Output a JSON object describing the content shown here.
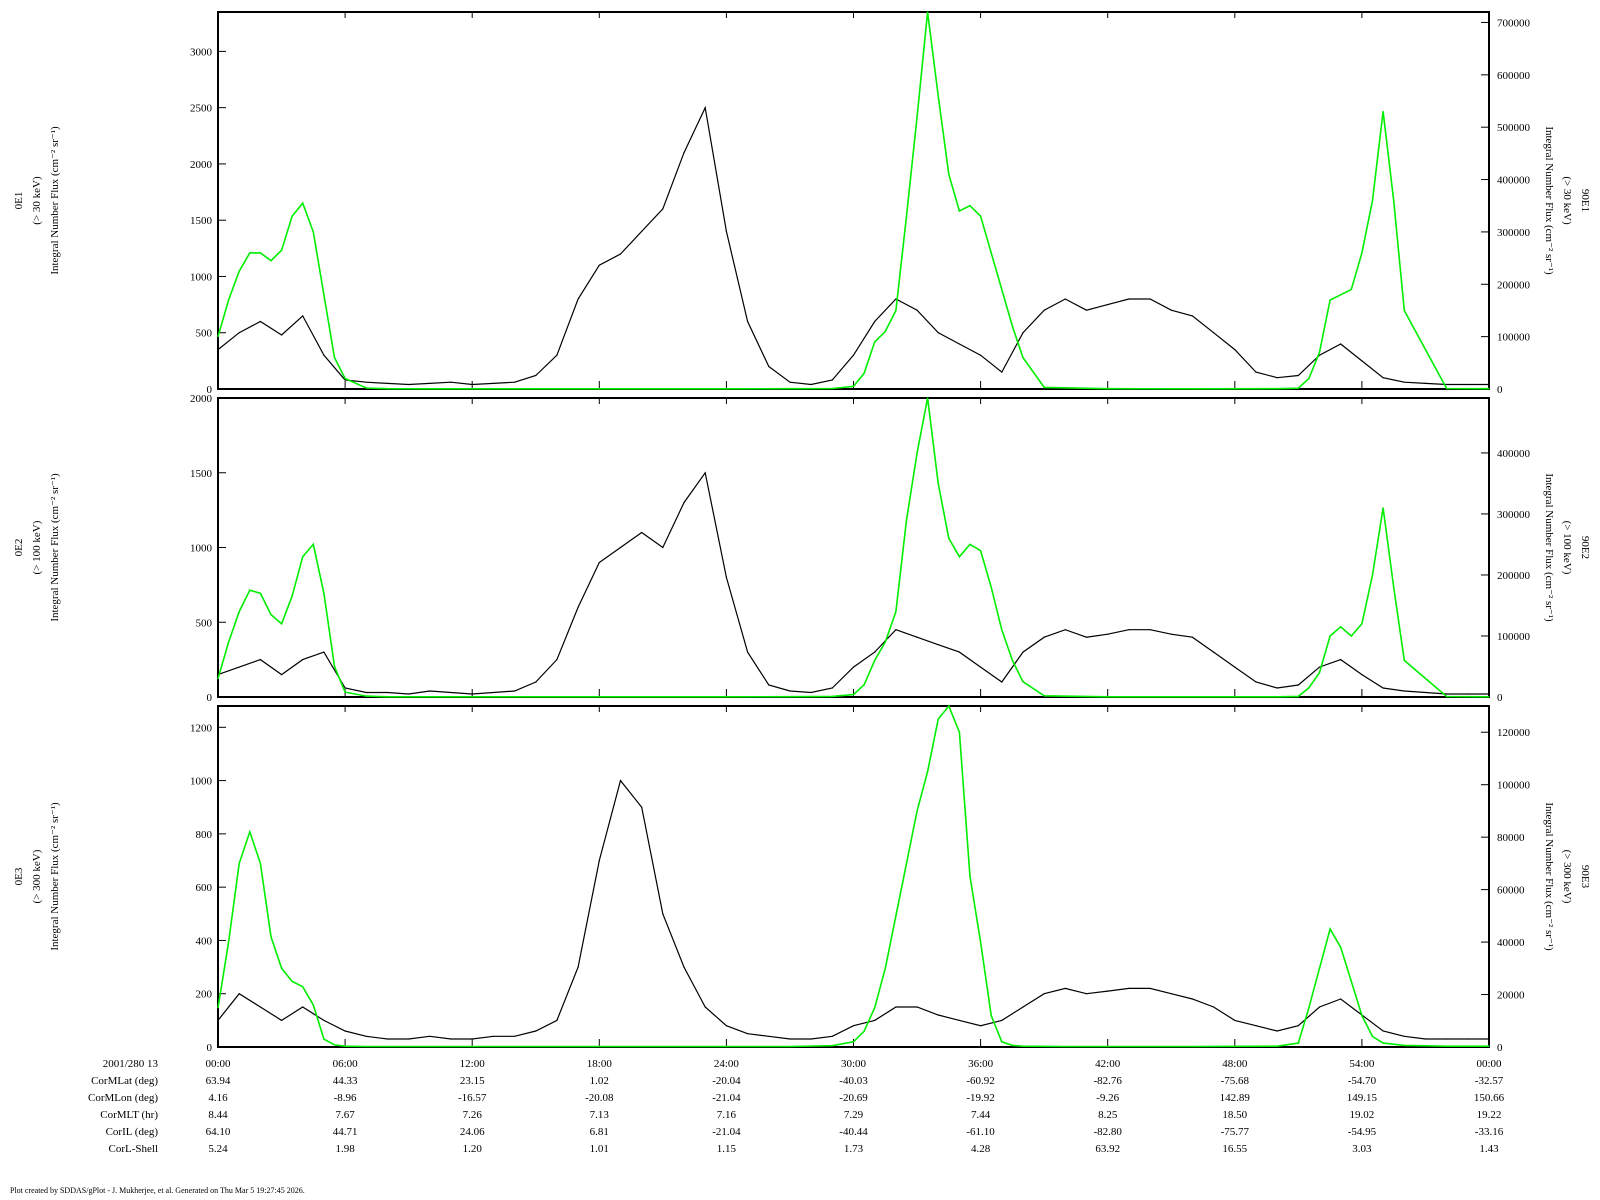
{
  "chart_data": {
    "type": "line",
    "x_axis": {
      "range_hours": [
        0,
        60
      ],
      "tick_labels": [
        "00:00",
        "06:00",
        "12:00",
        "18:00",
        "24:00",
        "30:00",
        "36:00",
        "42:00",
        "48:00",
        "54:00",
        "00:00"
      ],
      "origin_label": "2001/280 13"
    },
    "panels": [
      {
        "id": "E1",
        "left_axis": {
          "label_lines": [
            "0E1",
            "(> 30 keV)",
            "Integral Number Flux (cm⁻² sr⁻¹)"
          ],
          "range": [
            0,
            3350
          ],
          "ticks": [
            0,
            500,
            1000,
            1500,
            2000,
            2500,
            3000
          ]
        },
        "right_axis": {
          "label_lines": [
            "90E1",
            "(> 30 keV)",
            "Integral Number Flux (cm⁻² sr⁻¹)"
          ],
          "range": [
            0,
            720000
          ],
          "ticks": [
            0,
            100000,
            200000,
            300000,
            400000,
            500000,
            600000,
            700000
          ]
        },
        "series": [
          {
            "axis": "left",
            "color": "#000000",
            "x": [
              0,
              1,
              2,
              3,
              4,
              5,
              6,
              7,
              8,
              9,
              10,
              11,
              12,
              13,
              14,
              15,
              16,
              17,
              18,
              19,
              20,
              21,
              22,
              23,
              24,
              25,
              26,
              27,
              28,
              29,
              30,
              31,
              32,
              33,
              34,
              35,
              36,
              37,
              38,
              39,
              40,
              41,
              42,
              43,
              44,
              45,
              46,
              47,
              48,
              49,
              50,
              51,
              52,
              53,
              54,
              55,
              56,
              57,
              58,
              59,
              60
            ],
            "y": [
              350,
              500,
              600,
              480,
              650,
              300,
              80,
              60,
              50,
              40,
              50,
              60,
              40,
              50,
              60,
              120,
              300,
              800,
              1100,
              1200,
              1400,
              1600,
              2100,
              2500,
              1400,
              600,
              200,
              60,
              40,
              80,
              300,
              600,
              800,
              700,
              500,
              400,
              300,
              150,
              500,
              700,
              800,
              700,
              750,
              800,
              800,
              700,
              650,
              500,
              350,
              150,
              100,
              120,
              300,
              400,
              250,
              100,
              60,
              50,
              40,
              40,
              40
            ]
          },
          {
            "axis": "right",
            "color": "#00ee00",
            "x": [
              0,
              0.5,
              1,
              1.5,
              2,
              2.5,
              3,
              3.5,
              4,
              4.5,
              5,
              5.5,
              6,
              7,
              8,
              10,
              12,
              15,
              18,
              21,
              24,
              27,
              29,
              30,
              30.5,
              31,
              31.5,
              32,
              32.5,
              33,
              33.5,
              34,
              34.5,
              35,
              35.5,
              36,
              36.5,
              37,
              37.5,
              38,
              39,
              42,
              46,
              50,
              51,
              51.5,
              52,
              52.5,
              53,
              53.5,
              54,
              54.5,
              55,
              55.5,
              56,
              58,
              60
            ],
            "y": [
              100000,
              170000,
              225000,
              260000,
              260000,
              245000,
              265000,
              330000,
              355000,
              300000,
              180000,
              60000,
              20000,
              2000,
              500,
              300,
              300,
              300,
              300,
              300,
              400,
              500,
              1000,
              5000,
              30000,
              90000,
              110000,
              150000,
              330000,
              520000,
              720000,
              560000,
              410000,
              340000,
              350000,
              330000,
              260000,
              190000,
              120000,
              60000,
              3000,
              500,
              400,
              500,
              1500,
              20000,
              70000,
              170000,
              180000,
              190000,
              260000,
              360000,
              530000,
              360000,
              150000,
              1000,
              500
            ]
          }
        ]
      },
      {
        "id": "E2",
        "left_axis": {
          "label_lines": [
            "0E2",
            "(> 100 keV)",
            "Integral Number Flux (cm⁻² sr⁻¹)"
          ],
          "range": [
            0,
            2000
          ],
          "ticks": [
            0,
            500,
            1000,
            1500,
            2000
          ]
        },
        "right_axis": {
          "label_lines": [
            "90E2",
            "(> 100 keV)",
            "Integral Number Flux (cm⁻² sr⁻¹)"
          ],
          "range": [
            0,
            490000
          ],
          "ticks": [
            0,
            100000,
            200000,
            300000,
            400000
          ]
        },
        "series": [
          {
            "axis": "left",
            "color": "#000000",
            "x": [
              0,
              1,
              2,
              3,
              4,
              5,
              6,
              7,
              8,
              9,
              10,
              11,
              12,
              13,
              14,
              15,
              16,
              17,
              18,
              19,
              20,
              21,
              22,
              23,
              24,
              25,
              26,
              27,
              28,
              29,
              30,
              31,
              32,
              33,
              34,
              35,
              36,
              37,
              38,
              39,
              40,
              41,
              42,
              43,
              44,
              45,
              46,
              47,
              48,
              49,
              50,
              51,
              52,
              53,
              54,
              55,
              56,
              57,
              58,
              59,
              60
            ],
            "y": [
              150,
              200,
              250,
              150,
              250,
              300,
              60,
              30,
              30,
              20,
              40,
              30,
              20,
              30,
              40,
              100,
              250,
              600,
              900,
              1000,
              1100,
              1000,
              1300,
              1500,
              800,
              300,
              80,
              40,
              30,
              60,
              200,
              300,
              450,
              400,
              350,
              300,
              200,
              100,
              300,
              400,
              450,
              400,
              420,
              450,
              450,
              420,
              400,
              300,
              200,
              100,
              60,
              80,
              200,
              250,
              150,
              60,
              40,
              30,
              20,
              20,
              20
            ]
          },
          {
            "axis": "right",
            "color": "#00ee00",
            "x": [
              0,
              0.5,
              1,
              1.5,
              2,
              2.5,
              3,
              3.5,
              4,
              4.5,
              5,
              5.5,
              6,
              7,
              8,
              10,
              12,
              15,
              18,
              21,
              24,
              27,
              29,
              30,
              30.5,
              31,
              31.5,
              32,
              32.5,
              33,
              33.5,
              34,
              34.5,
              35,
              35.5,
              36,
              36.5,
              37,
              37.5,
              38,
              39,
              42,
              46,
              50,
              51,
              51.5,
              52,
              52.5,
              53,
              53.5,
              54,
              54.5,
              55,
              55.5,
              56,
              58,
              60
            ],
            "y": [
              30000,
              90000,
              140000,
              175000,
              170000,
              135000,
              120000,
              165000,
              230000,
              250000,
              170000,
              50000,
              8000,
              1500,
              400,
              300,
              300,
              300,
              300,
              300,
              400,
              500,
              1000,
              4000,
              20000,
              60000,
              90000,
              140000,
              290000,
              400000,
              490000,
              350000,
              260000,
              230000,
              250000,
              240000,
              180000,
              110000,
              60000,
              25000,
              2000,
              400,
              300,
              400,
              1000,
              15000,
              40000,
              100000,
              115000,
              100000,
              120000,
              200000,
              310000,
              180000,
              60000,
              800,
              400
            ]
          }
        ]
      },
      {
        "id": "E3",
        "left_axis": {
          "label_lines": [
            "0E3",
            "(> 300 keV)",
            "Integral Number Flux (cm⁻² sr⁻¹)"
          ],
          "range": [
            0,
            1280
          ],
          "ticks": [
            0,
            200,
            400,
            600,
            800,
            1000,
            1200
          ]
        },
        "right_axis": {
          "label_lines": [
            "90E3",
            "(> 300 keV)",
            "Integral Number Flux (cm⁻² sr⁻¹)"
          ],
          "range": [
            0,
            130000
          ],
          "ticks": [
            0,
            20000,
            40000,
            60000,
            80000,
            100000,
            120000
          ]
        },
        "series": [
          {
            "axis": "left",
            "color": "#000000",
            "x": [
              0,
              1,
              2,
              3,
              4,
              5,
              6,
              7,
              8,
              9,
              10,
              11,
              12,
              13,
              14,
              15,
              16,
              17,
              18,
              19,
              20,
              21,
              22,
              23,
              24,
              25,
              26,
              27,
              28,
              29,
              30,
              31,
              32,
              33,
              34,
              35,
              36,
              37,
              38,
              39,
              40,
              41,
              42,
              43,
              44,
              45,
              46,
              47,
              48,
              49,
              50,
              51,
              52,
              53,
              54,
              55,
              56,
              57,
              58,
              59,
              60
            ],
            "y": [
              100,
              200,
              150,
              100,
              150,
              100,
              60,
              40,
              30,
              30,
              40,
              30,
              30,
              40,
              40,
              60,
              100,
              300,
              700,
              1000,
              900,
              500,
              300,
              150,
              80,
              50,
              40,
              30,
              30,
              40,
              80,
              100,
              150,
              150,
              120,
              100,
              80,
              100,
              150,
              200,
              220,
              200,
              210,
              220,
              220,
              200,
              180,
              150,
              100,
              80,
              60,
              80,
              150,
              180,
              120,
              60,
              40,
              30,
              30,
              30,
              30
            ]
          },
          {
            "axis": "right",
            "color": "#00ee00",
            "x": [
              0,
              0.5,
              1,
              1.5,
              2,
              2.5,
              3,
              3.5,
              4,
              4.5,
              5,
              5.5,
              6,
              7,
              8,
              12,
              18,
              24,
              27,
              29,
              30,
              30.5,
              31,
              31.5,
              32,
              32.5,
              33,
              33.5,
              34,
              34.5,
              35,
              35.5,
              36,
              36.5,
              37,
              37.5,
              38,
              40,
              46,
              50,
              51,
              51.5,
              52,
              52.5,
              53,
              53.5,
              54,
              54.5,
              55,
              56,
              58,
              60
            ],
            "y": [
              15000,
              40000,
              70000,
              82000,
              70000,
              42000,
              30000,
              25000,
              23000,
              16000,
              3000,
              800,
              300,
              200,
              200,
              200,
              200,
              200,
              200,
              500,
              2000,
              6000,
              15000,
              30000,
              50000,
              70000,
              90000,
              105000,
              125000,
              130000,
              120000,
              65000,
              40000,
              12000,
              2000,
              600,
              300,
              200,
              200,
              300,
              1500,
              15000,
              30000,
              45000,
              38000,
              25000,
              12000,
              4000,
              1500,
              600,
              300,
              300
            ]
          }
        ]
      }
    ],
    "ephemeris": {
      "rows": [
        {
          "label": "CorMLat (deg)",
          "values": [
            "63.94",
            "44.33",
            "23.15",
            "1.02",
            "-20.04",
            "-40.03",
            "-60.92",
            "-82.76",
            "-75.68",
            "-54.70",
            "-32.57"
          ]
        },
        {
          "label": "CorMLon (deg)",
          "values": [
            "4.16",
            "-8.96",
            "-16.57",
            "-20.08",
            "-21.04",
            "-20.69",
            "-19.92",
            "-9.26",
            "142.89",
            "149.15",
            "150.66"
          ]
        },
        {
          "label": "CorMLT (hr)",
          "values": [
            "8.44",
            "7.67",
            "7.26",
            "7.13",
            "7.16",
            "7.29",
            "7.44",
            "8.25",
            "18.50",
            "19.02",
            "19.22"
          ]
        },
        {
          "label": "CorIL (deg)",
          "values": [
            "64.10",
            "44.71",
            "24.06",
            "6.81",
            "-21.04",
            "-40.44",
            "-61.10",
            "-82.80",
            "-75.77",
            "-54.95",
            "-33.16"
          ]
        },
        {
          "label": "CorL-Shell",
          "values": [
            "5.24",
            "1.98",
            "1.20",
            "1.01",
            "1.15",
            "1.73",
            "4.28",
            "63.92",
            "16.55",
            "3.03",
            "1.43"
          ]
        }
      ]
    },
    "footer": "Plot created by SDDAS/gPlot - J. Mukherjee, et al.  Generated on Thu Mar 5 19:27:45 2026."
  }
}
